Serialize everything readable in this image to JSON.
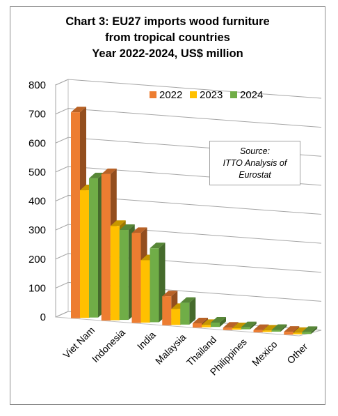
{
  "chart_data": {
    "type": "bar",
    "title_lines": [
      "Chart 3: EU27 imports wood furniture",
      "from tropical countries",
      "Year 2022-2024, US$ million"
    ],
    "categories": [
      "Viet Nam",
      "Indonesia",
      "India",
      "Malaysia",
      "Thailand",
      "Philippines",
      "Mexico",
      "Other"
    ],
    "series": [
      {
        "name": "2022",
        "color": "#ed7d31",
        "values": [
          710,
          505,
          310,
          100,
          15,
          8,
          8,
          10
        ]
      },
      {
        "name": "2023",
        "color": "#ffc000",
        "values": [
          440,
          325,
          215,
          55,
          8,
          5,
          5,
          5
        ]
      },
      {
        "name": "2024",
        "color": "#70ad47",
        "values": [
          480,
          310,
          255,
          75,
          15,
          7,
          6,
          7
        ]
      }
    ],
    "y_ticks": [
      "0",
      "100",
      "200",
      "300",
      "400",
      "500",
      "600",
      "700",
      "800"
    ],
    "ylim": [
      0,
      800
    ],
    "grid": true,
    "legend_position": "top-right",
    "annotation_lines": [
      "Source:",
      "ITTO Analysis of",
      "Eurostat"
    ]
  }
}
